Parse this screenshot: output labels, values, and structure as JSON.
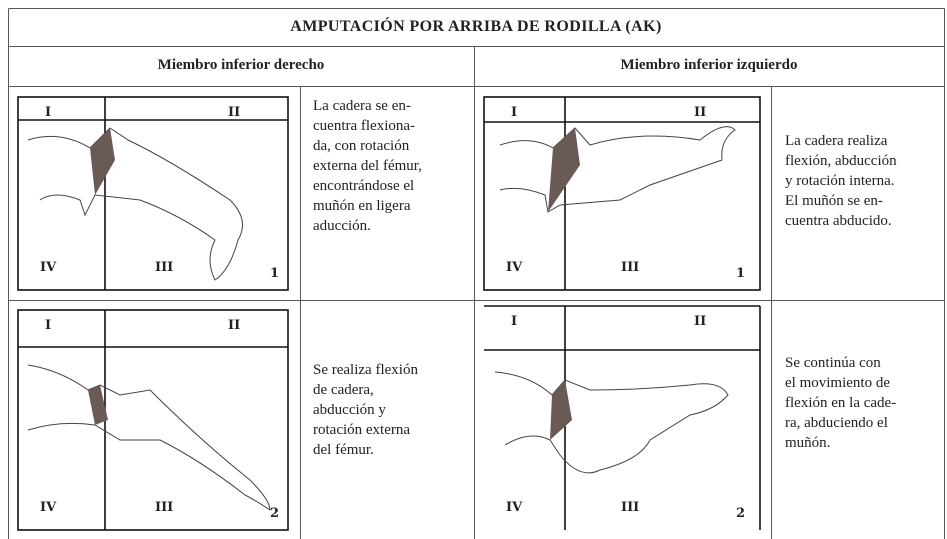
{
  "table": {
    "title": "AMPUTACIÓN POR ARRIBA DE RODILLA (AK)",
    "headers": [
      "Miembro inferior derecho",
      "Miembro inferior izquierdo"
    ],
    "rows": [
      [
        {
          "figure": {
            "quadrants": [
              "I",
              "II",
              "III",
              "IV"
            ],
            "number": "1"
          },
          "description": [
            "La cadera se en-",
            "cuentra flexiona-",
            "da, con rotación",
            "externa del fémur,",
            "encontrándose el",
            "muñón en ligera",
            "aducción."
          ]
        },
        {
          "figure": {
            "quadrants": [
              "I",
              "II",
              "III",
              "IV"
            ],
            "number": "1"
          },
          "description": [
            "La cadera realiza",
            "flexión, abducción",
            "y rotación interna.",
            "El muñón se en-",
            "cuentra abducido."
          ]
        }
      ],
      [
        {
          "figure": {
            "quadrants": [
              "I",
              "II",
              "III",
              "IV"
            ],
            "number": "2"
          },
          "description": [
            "Se realiza flexión",
            "de cadera,",
            "abducción y",
            "rotación externa",
            "del fémur."
          ]
        },
        {
          "figure": {
            "quadrants": [
              "I",
              "II",
              "III",
              "IV"
            ],
            "number": "2"
          },
          "description": [
            "Se continúa con",
            "el movimiento de",
            "flexión en la cade-",
            "ra, abduciendo el",
            "muñón."
          ]
        }
      ]
    ]
  }
}
